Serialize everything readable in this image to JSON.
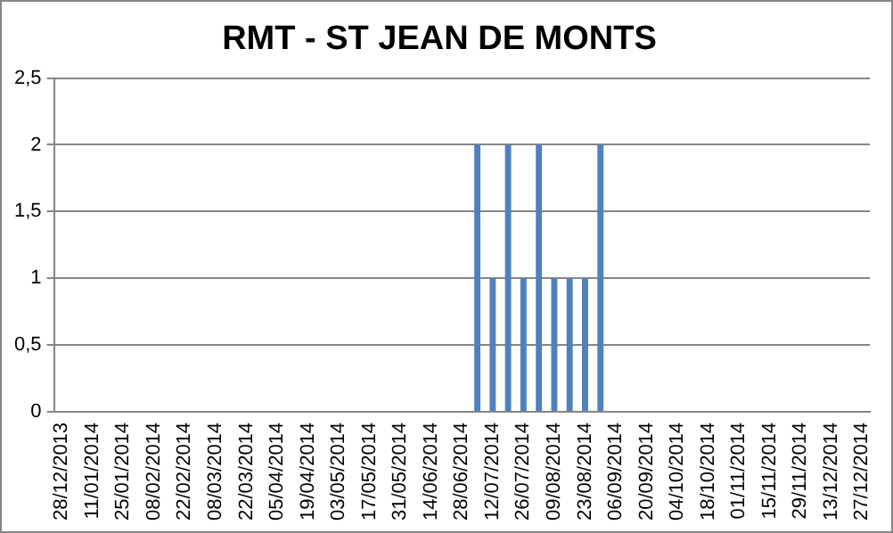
{
  "chart_data": {
    "type": "bar",
    "title": "RMT - ST JEAN DE MONTS",
    "categories": [
      "28/12/2013",
      null,
      "11/01/2014",
      null,
      "25/01/2014",
      null,
      "08/02/2014",
      null,
      "22/02/2014",
      null,
      "08/03/2014",
      null,
      "22/03/2014",
      null,
      "05/04/2014",
      null,
      "19/04/2014",
      null,
      "03/05/2014",
      null,
      "17/05/2014",
      null,
      "31/05/2014",
      null,
      "14/06/2014",
      null,
      "28/06/2014",
      null,
      "12/07/2014",
      null,
      "26/07/2014",
      null,
      "09/08/2014",
      null,
      "23/08/2014",
      null,
      "06/09/2014",
      null,
      "20/09/2014",
      null,
      "04/10/2014",
      null,
      "18/10/2014",
      null,
      "01/11/2014",
      null,
      "15/11/2014",
      null,
      "29/11/2014",
      null,
      "13/12/2014",
      null,
      "27/12/2014"
    ],
    "values": [
      0,
      0,
      0,
      0,
      0,
      0,
      0,
      0,
      0,
      0,
      0,
      0,
      0,
      0,
      0,
      0,
      0,
      0,
      0,
      0,
      0,
      0,
      0,
      0,
      0,
      0,
      0,
      2,
      1,
      2,
      1,
      2,
      1,
      1,
      1,
      2,
      0,
      0,
      0,
      0,
      0,
      0,
      0,
      0,
      0,
      0,
      0,
      0,
      0,
      0,
      0,
      0,
      0
    ],
    "color": "#4f81bd",
    "ylim": [
      0,
      2.5
    ],
    "yticks": [
      0,
      {
        "value": 0.5,
        "label": "0,5"
      },
      1,
      {
        "value": 1.5,
        "label": "1,5"
      },
      2,
      {
        "value": 2.5,
        "label": "2,5"
      }
    ],
    "grid": "y",
    "legend": false
  }
}
